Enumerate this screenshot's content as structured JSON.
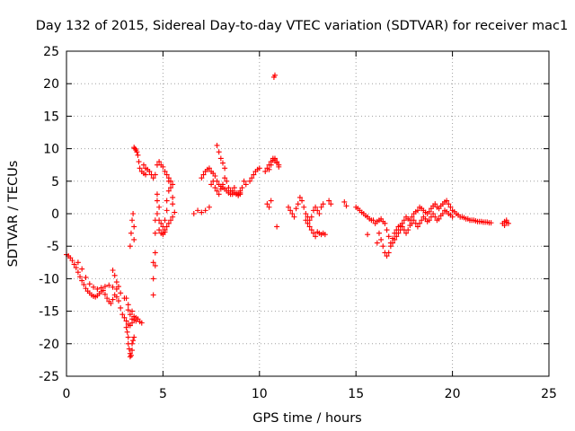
{
  "chart_data": {
    "type": "scatter",
    "title": "Day 132 of 2015, Sidereal Day-to-day VTEC variation (SDTVAR) for receiver mac1",
    "xlabel": "GPS time / hours",
    "ylabel": "SDTVAR / TECUs",
    "xlim": [
      0,
      25
    ],
    "ylim": [
      -25,
      25
    ],
    "xticks": [
      "0",
      "5",
      "10",
      "15",
      "20",
      "25"
    ],
    "yticks": [
      "-25",
      "-20",
      "-15",
      "-10",
      "-5",
      "0",
      "5",
      "10",
      "15",
      "20",
      "25"
    ],
    "grid": true,
    "marker": "+",
    "color": "#ff0000",
    "series": [
      {
        "name": "mac1",
        "x": [
          0.0,
          0.1,
          0.2,
          0.3,
          0.4,
          0.5,
          0.6,
          0.7,
          0.8,
          0.9,
          1.0,
          1.1,
          1.2,
          1.3,
          1.4,
          1.5,
          1.6,
          1.7,
          1.8,
          1.9,
          2.0,
          2.1,
          2.2,
          2.3,
          2.4,
          2.5,
          2.6,
          2.7,
          2.8,
          2.9,
          3.0,
          3.1,
          3.2,
          3.3,
          3.4,
          3.5,
          3.6,
          3.7,
          3.8,
          3.9,
          0.6,
          0.8,
          1.0,
          1.2,
          1.4,
          1.6,
          1.8,
          2.0,
          2.2,
          2.4,
          2.6,
          2.8,
          3.0,
          3.2,
          3.4,
          2.4,
          2.5,
          2.6,
          2.7,
          3.1,
          3.2,
          3.3,
          3.4,
          3.5,
          3.6,
          3.1,
          3.15,
          3.2,
          3.2,
          3.25,
          3.3,
          3.3,
          3.35,
          3.4,
          3.4,
          3.45,
          3.5,
          3.3,
          3.35,
          3.4,
          3.45,
          3.5,
          3.5,
          3.5,
          3.55,
          3.6,
          3.65,
          3.7,
          3.75,
          3.8,
          3.9,
          4.0,
          4.1,
          4.0,
          4.1,
          4.2,
          4.3,
          4.4,
          4.5,
          4.6,
          4.7,
          4.8,
          4.9,
          5.0,
          5.1,
          5.2,
          5.3,
          5.4,
          5.5,
          4.5,
          4.5,
          4.5,
          4.6,
          4.6,
          4.6,
          4.6,
          4.7,
          4.7,
          4.7,
          4.8,
          4.8,
          4.8,
          4.9,
          4.9,
          5.0,
          5.0,
          5.1,
          5.1,
          5.2,
          5.2,
          5.3,
          5.3,
          5.4,
          5.5,
          5.5,
          5.0,
          5.1,
          5.2,
          5.3,
          5.4,
          5.5,
          5.6,
          6.6,
          6.8,
          7.0,
          7.2,
          7.4,
          7.0,
          7.1,
          7.2,
          7.3,
          7.4,
          7.5,
          7.6,
          7.7,
          7.8,
          7.9,
          8.0,
          8.1,
          8.2,
          8.3,
          8.4,
          8.5,
          8.6,
          8.7,
          8.8,
          8.9,
          9.0,
          7.8,
          7.9,
          8.0,
          8.1,
          8.2,
          7.5,
          7.6,
          7.7,
          7.8,
          7.9,
          8.0,
          8.1,
          8.2,
          8.3,
          8.4,
          8.5,
          8.6,
          8.7,
          8.8,
          8.9,
          9.0,
          9.0,
          9.1,
          9.2,
          9.3,
          9.5,
          9.6,
          9.7,
          9.8,
          9.9,
          10.0,
          10.3,
          10.4,
          10.5,
          10.6,
          10.7,
          10.8,
          10.9,
          11.0,
          10.5,
          10.6,
          10.7,
          10.8,
          10.9,
          11.0,
          10.4,
          10.5,
          10.6,
          10.9,
          10.75,
          10.8,
          11.5,
          11.6,
          11.7,
          11.8,
          11.9,
          12.0,
          12.1,
          12.2,
          12.3,
          12.4,
          12.5,
          12.6,
          12.7,
          12.8,
          12.9,
          13.0,
          13.1,
          13.2,
          13.3,
          12.4,
          12.5,
          12.6,
          12.7,
          12.8,
          12.9,
          13.0,
          13.1,
          13.2,
          13.3,
          13.4,
          13.6,
          13.7,
          14.4,
          14.5,
          15.0,
          15.1,
          15.2,
          15.3,
          15.4,
          15.5,
          15.6,
          15.7,
          15.8,
          15.9,
          16.0,
          16.1,
          16.2,
          16.3,
          16.4,
          16.5,
          16.6,
          16.7,
          16.8,
          16.9,
          17.0,
          17.1,
          17.2,
          17.3,
          17.4,
          17.5,
          17.6,
          17.7,
          17.8,
          17.9,
          18.0,
          18.1,
          18.2,
          18.3,
          18.4,
          18.5,
          18.6,
          18.7,
          18.8,
          18.9,
          19.0,
          19.1,
          19.2,
          19.3,
          19.4,
          19.5,
          19.6,
          19.7,
          19.8,
          19.9,
          20.0,
          20.1,
          20.2,
          20.3,
          20.4,
          20.5,
          20.6,
          20.7,
          20.8,
          20.9,
          21.0,
          21.1,
          21.2,
          21.3,
          21.4,
          21.5,
          21.6,
          21.7,
          21.8,
          21.9,
          22.0,
          16.2,
          16.3,
          16.4,
          16.5,
          16.6,
          16.7,
          16.8,
          16.9,
          17.0,
          17.1,
          17.2,
          17.3,
          17.4,
          17.5,
          17.6,
          17.7,
          17.8,
          17.9,
          18.0,
          18.1,
          18.2,
          18.3,
          18.4,
          18.5,
          18.6,
          18.7,
          18.8,
          18.9,
          19.0,
          19.1,
          19.2,
          19.3,
          19.4,
          19.5,
          19.6,
          19.7,
          19.8,
          19.9,
          20.0,
          15.6,
          16.1,
          22.6,
          22.7,
          22.8,
          22.9,
          22.7,
          22.8
        ],
        "y": [
          -6.3,
          -6.5,
          -6.8,
          -7.2,
          -7.8,
          -8.3,
          -9.0,
          -9.7,
          -10.3,
          -10.9,
          -11.5,
          -11.9,
          -12.2,
          -12.5,
          -12.7,
          -12.8,
          -12.6,
          -12.3,
          -12.0,
          -11.8,
          -12.4,
          -13.0,
          -13.5,
          -13.8,
          -13.2,
          -12.5,
          -12.8,
          -13.4,
          -14.5,
          -15.5,
          -16.0,
          -16.5,
          -17.0,
          -17.2,
          -16.8,
          -16.3,
          -16.0,
          -16.2,
          -16.6,
          -16.8,
          -7.5,
          -8.5,
          -9.8,
          -10.8,
          -11.3,
          -11.6,
          -11.4,
          -11.2,
          -11.0,
          -11.3,
          -11.6,
          -12.2,
          -13.0,
          -14.0,
          -15.0,
          -8.7,
          -9.5,
          -10.5,
          -11.2,
          -13.0,
          -14.8,
          -15.5,
          -16.2,
          -15.8,
          -16.5,
          -17.5,
          -18.2,
          -19.0,
          -20.0,
          -20.8,
          -21.5,
          -22.0,
          -21.8,
          -21.0,
          -20.0,
          -19.5,
          -19.0,
          -5.0,
          -3.0,
          -1.0,
          0.0,
          -2.0,
          -4.0,
          10.2,
          10.0,
          9.8,
          9.5,
          9.0,
          8.0,
          7.0,
          6.5,
          6.2,
          6.0,
          7.5,
          7.0,
          6.8,
          6.5,
          6.0,
          5.5,
          6.0,
          7.5,
          8.0,
          7.5,
          7.2,
          6.5,
          6.0,
          5.5,
          5.0,
          4.5,
          -12.5,
          -10.0,
          -7.5,
          -8.0,
          -6.0,
          -3.0,
          -1.0,
          0.0,
          2.0,
          3.0,
          1.0,
          -1.0,
          -2.5,
          -3.0,
          -1.5,
          -2.0,
          -3.0,
          -2.5,
          -1.0,
          0.5,
          2.0,
          3.5,
          5.0,
          4.0,
          2.5,
          1.5,
          -3.2,
          -2.8,
          -2.0,
          -1.5,
          -1.0,
          -0.5,
          0.2,
          0.0,
          0.5,
          0.2,
          0.5,
          1.0,
          5.5,
          6.0,
          6.5,
          6.8,
          7.0,
          6.5,
          6.2,
          5.8,
          5.0,
          4.5,
          4.2,
          4.0,
          3.8,
          3.5,
          3.2,
          3.0,
          3.5,
          4.0,
          3.2,
          3.0,
          3.2,
          10.5,
          9.5,
          8.5,
          7.8,
          7.0,
          4.5,
          5.0,
          4.0,
          3.5,
          3.0,
          3.8,
          4.5,
          5.5,
          5.0,
          4.0,
          3.5,
          3.0,
          3.2,
          3.0,
          2.8,
          3.0,
          3.5,
          4.0,
          5.0,
          4.5,
          5.0,
          5.5,
          6.0,
          6.5,
          6.8,
          7.0,
          6.5,
          7.0,
          7.5,
          8.0,
          8.5,
          8.3,
          7.8,
          7.2,
          6.8,
          7.5,
          8.2,
          8.5,
          8.0,
          7.5,
          1.5,
          1.0,
          2.0,
          -2.0,
          21.0,
          21.3,
          1.0,
          0.5,
          0.0,
          -0.5,
          0.8,
          1.5,
          2.5,
          2.0,
          1.0,
          0.0,
          -0.5,
          -1.0,
          -0.5,
          0.5,
          1.0,
          0.5,
          0.0,
          1.0,
          1.5,
          -1.0,
          -1.5,
          -2.0,
          -2.5,
          -3.0,
          -3.5,
          -2.8,
          -3.0,
          -3.2,
          -3.0,
          -3.2,
          2.0,
          1.5,
          1.8,
          1.2,
          1.0,
          0.8,
          0.5,
          0.2,
          0.0,
          -0.3,
          -0.5,
          -0.8,
          -1.0,
          -1.0,
          -1.5,
          -1.2,
          -1.0,
          -0.8,
          -1.2,
          -1.5,
          -2.5,
          -3.5,
          -4.5,
          -3.8,
          -3.0,
          -2.5,
          -2.0,
          -1.8,
          -1.5,
          -1.0,
          -0.5,
          -0.8,
          -1.0,
          -0.5,
          0.0,
          0.3,
          0.5,
          1.0,
          0.8,
          0.5,
          0.2,
          0.0,
          0.3,
          0.8,
          1.2,
          1.5,
          1.0,
          0.8,
          1.2,
          1.5,
          1.8,
          2.0,
          1.5,
          1.0,
          0.5,
          0.3,
          0.0,
          -0.2,
          -0.5,
          -0.5,
          -0.6,
          -0.8,
          -0.8,
          -1.0,
          -1.0,
          -1.0,
          -1.1,
          -1.2,
          -1.2,
          -1.2,
          -1.3,
          -1.3,
          -1.3,
          -1.4,
          -1.4,
          -3.0,
          -4.0,
          -5.0,
          -6.0,
          -6.5,
          -6.0,
          -5.0,
          -4.5,
          -4.0,
          -3.5,
          -3.0,
          -2.5,
          -2.0,
          -2.5,
          -3.0,
          -2.5,
          -1.8,
          -1.5,
          -1.0,
          -1.5,
          -2.0,
          -1.5,
          -1.0,
          -0.5,
          -0.8,
          -1.2,
          -1.0,
          -0.5,
          0.0,
          -0.5,
          -1.0,
          -0.8,
          -0.3,
          0.0,
          0.5,
          0.3,
          0.0,
          -0.2,
          -0.5,
          -3.2,
          -4.5,
          -1.5,
          -1.2,
          -1.0,
          -1.5,
          -1.8,
          -1.3
        ]
      }
    ]
  }
}
